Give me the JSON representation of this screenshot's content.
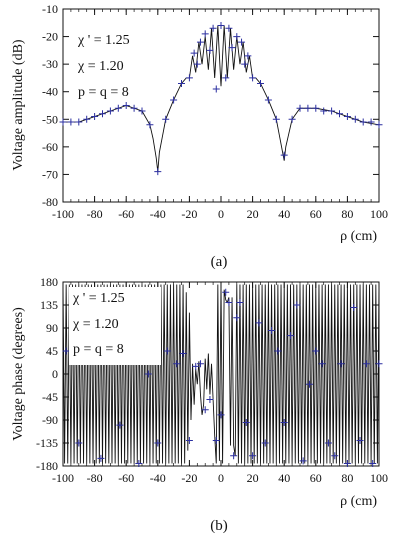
{
  "chart_data": [
    {
      "type": "line",
      "panel_label": "a",
      "ylabel": "Voltage amplitude (dB)",
      "xlabel": "ρ (cm)",
      "xlim": [
        -100,
        100
      ],
      "ylim": [
        -80,
        -10
      ],
      "xticks": [
        -100,
        -80,
        -60,
        -40,
        -20,
        0,
        20,
        40,
        60,
        80,
        100
      ],
      "yticks": [
        -10,
        -20,
        -30,
        -40,
        -50,
        -60,
        -70,
        -80
      ],
      "annotations": [
        "χ ' = 1.25",
        "χ  = 1.20",
        "p = q = 8"
      ],
      "series": [
        {
          "kind": "line",
          "x": [
            -100,
            -90,
            -80,
            -70,
            -60,
            -55,
            -50,
            -45,
            -43,
            -41,
            -40,
            -39,
            -37,
            -35,
            -30,
            -25,
            -22,
            -20,
            -18,
            -16,
            -14,
            -12,
            -10,
            -8,
            -6,
            -4,
            -2,
            0,
            2,
            4,
            6,
            8,
            10,
            12,
            14,
            16,
            18,
            20,
            22,
            25,
            30,
            35,
            37,
            39,
            40,
            41,
            43,
            45,
            50,
            55,
            60,
            70,
            80,
            90,
            100
          ],
          "y": [
            -51,
            -51,
            -49,
            -47,
            -45,
            -46,
            -47,
            -52,
            -57,
            -64,
            -69,
            -62,
            -56,
            -50,
            -43,
            -37,
            -35,
            -35,
            -27,
            -33,
            -22,
            -30,
            -20,
            -32,
            -17,
            -35,
            -16,
            -38,
            -16,
            -35,
            -17,
            -32,
            -20,
            -30,
            -22,
            -33,
            -27,
            -35,
            -35,
            -37,
            -43,
            -50,
            -56,
            -62,
            -65,
            -60,
            -55,
            -50,
            -46,
            -46,
            -46,
            -47,
            -49,
            -51,
            -52
          ]
        },
        {
          "kind": "markers",
          "x": [
            -100,
            -95,
            -90,
            -85,
            -80,
            -75,
            -70,
            -65,
            -60,
            -55,
            -50,
            -45,
            -40,
            -35,
            -30,
            -25,
            -20,
            -17,
            -15,
            -13,
            -10,
            -7,
            -5,
            -3,
            0,
            3,
            5,
            7,
            10,
            13,
            15,
            17,
            20,
            25,
            30,
            35,
            40,
            45,
            50,
            55,
            60,
            65,
            70,
            75,
            80,
            85,
            90,
            95,
            100
          ],
          "y": [
            -51,
            -51,
            -51,
            -50,
            -49,
            -48,
            -47,
            -46,
            -45,
            -46,
            -47,
            -52,
            -69,
            -50,
            -43,
            -37,
            -35,
            -26,
            -30,
            -22,
            -19,
            -25,
            -17,
            -39,
            -16,
            -35,
            -17,
            -24,
            -20,
            -22,
            -30,
            -27,
            -35,
            -37,
            -43,
            -50,
            -63,
            -50,
            -46,
            -46,
            -46,
            -47,
            -47,
            -48,
            -49,
            -50,
            -51,
            -51,
            -52
          ]
        }
      ]
    },
    {
      "type": "line",
      "panel_label": "b",
      "ylabel": "Voltage phase (degrees)",
      "xlabel": "ρ (cm)",
      "xlim": [
        -100,
        100
      ],
      "ylim": [
        -180,
        180
      ],
      "xticks": [
        -100,
        -80,
        -60,
        -40,
        -20,
        0,
        20,
        40,
        60,
        80,
        100
      ],
      "yticks": [
        180,
        135,
        90,
        45,
        0,
        -45,
        -90,
        -135,
        -180
      ],
      "annotations": [
        "χ ' = 1.25",
        "χ  = 1.20",
        "p = q = 8"
      ],
      "series": [
        {
          "kind": "line",
          "description_x_step": 1,
          "x": [
            -100,
            -99,
            -98,
            -97,
            -96,
            -95,
            -94,
            -93,
            -92,
            -91,
            -90,
            -89,
            -88,
            -87,
            -86,
            -85,
            -84,
            -83,
            -82,
            -81,
            -80,
            -79,
            -78,
            -77,
            -76,
            -75,
            -74,
            -73,
            -72,
            -71,
            -70,
            -69,
            -68,
            -67,
            -66,
            -65,
            -64,
            -63,
            -62,
            -61,
            -60,
            -59,
            -58,
            -57,
            -56,
            -55,
            -54,
            -53,
            -52,
            -51,
            -50,
            -49,
            -48,
            -47,
            -46,
            -45,
            -44,
            -43,
            -42,
            -41,
            -40,
            -39,
            -38,
            -37,
            -36,
            -35,
            -34,
            -33,
            -32,
            -31,
            -30,
            -29,
            -28,
            -27,
            -26,
            -25,
            -24,
            -23,
            -22,
            -21,
            -20,
            -19,
            -18,
            -17,
            -16,
            -15,
            -14,
            -13,
            -12,
            -11,
            -10,
            -9,
            -8,
            -7,
            -6,
            -5,
            -4,
            -3,
            -2,
            -1,
            0,
            1,
            2,
            3,
            4,
            5,
            6,
            7,
            8,
            9,
            10,
            11,
            12,
            13,
            14,
            15,
            16,
            17,
            18,
            19,
            20,
            21,
            22,
            23,
            24,
            25,
            26,
            27,
            28,
            29,
            30,
            31,
            32,
            33,
            34,
            35,
            36,
            37,
            38,
            39,
            40,
            41,
            42,
            43,
            44,
            45,
            46,
            47,
            48,
            49,
            50,
            51,
            52,
            53,
            54,
            55,
            56,
            57,
            58,
            59,
            60,
            61,
            62,
            63,
            64,
            65,
            66,
            67,
            68,
            69,
            70,
            71,
            72,
            73,
            74,
            75,
            76,
            77,
            78,
            79,
            80,
            81,
            82,
            83,
            84,
            85,
            86,
            87,
            88,
            89,
            90,
            91,
            92,
            93,
            94,
            95,
            96,
            97,
            98,
            99,
            100
          ],
          "y": [
            175,
            -175,
            175,
            -175,
            175,
            -175,
            175,
            -175,
            175,
            -175,
            175,
            -175,
            175,
            -175,
            175,
            -175,
            175,
            -175,
            175,
            -175,
            175,
            -175,
            175,
            -175,
            175,
            -175,
            175,
            -175,
            175,
            -175,
            175,
            -175,
            175,
            -175,
            175,
            -175,
            175,
            -175,
            175,
            -175,
            175,
            -175,
            175,
            -175,
            175,
            -175,
            175,
            -175,
            175,
            -175,
            175,
            -175,
            175,
            -175,
            175,
            -175,
            175,
            -175,
            175,
            -175,
            175,
            -175,
            175,
            -175,
            175,
            -175,
            175,
            -175,
            175,
            -175,
            175,
            -175,
            175,
            -175,
            175,
            -175,
            175,
            -175,
            160,
            -150,
            120,
            -90,
            20,
            -60,
            10,
            -20,
            25,
            -40,
            -80,
            -60,
            30,
            -30,
            40,
            -40,
            20,
            -50,
            -120,
            -175,
            175,
            -170,
            175,
            -175,
            165,
            145,
            140,
            150,
            -140,
            150,
            -140,
            -160,
            175,
            -175,
            175,
            -175,
            175,
            -175,
            175,
            -175,
            175,
            -175,
            175,
            -175,
            175,
            -175,
            175,
            -175,
            175,
            -175,
            175,
            -175,
            175,
            -175,
            175,
            -175,
            175,
            -175,
            175,
            -175,
            175,
            -175,
            175,
            -175,
            175,
            -175,
            175,
            -175,
            175,
            -175,
            175,
            -175,
            175,
            -175,
            175,
            -175,
            175,
            -175,
            175,
            -175,
            175,
            -175,
            175,
            -175,
            175,
            -175,
            175,
            -175,
            175,
            -175,
            175,
            -175,
            175,
            -175,
            175,
            -175,
            175,
            -175,
            175,
            -175,
            175,
            -175,
            175,
            -175,
            175,
            -175,
            175,
            -175,
            175,
            -175,
            175,
            -175,
            175,
            -175,
            175,
            -175,
            175,
            -175,
            175,
            -175,
            175,
            -175,
            175
          ]
        },
        {
          "kind": "markers",
          "x": [
            -98,
            -90,
            -82,
            -76,
            -70,
            -64,
            -58,
            -52,
            -46,
            -40,
            -34,
            -28,
            -24,
            -20,
            -16,
            -13,
            -10,
            -7,
            -3,
            0,
            3,
            5,
            8,
            10,
            12,
            16,
            20,
            24,
            28,
            32,
            36,
            40,
            44,
            48,
            52,
            56,
            60,
            64,
            68,
            72,
            76,
            80,
            84,
            88,
            92,
            96,
            100
          ],
          "y": [
            45,
            -135,
            140,
            -165,
            45,
            -100,
            135,
            -175,
            0,
            -135,
            45,
            20,
            40,
            -130,
            15,
            20,
            -70,
            -50,
            -130,
            -80,
            160,
            140,
            -160,
            110,
            140,
            -95,
            -160,
            100,
            -135,
            85,
            45,
            -95,
            75,
            135,
            -170,
            -20,
            45,
            20,
            -135,
            -160,
            20,
            -175,
            130,
            -130,
            20,
            -175,
            20
          ]
        }
      ]
    }
  ]
}
